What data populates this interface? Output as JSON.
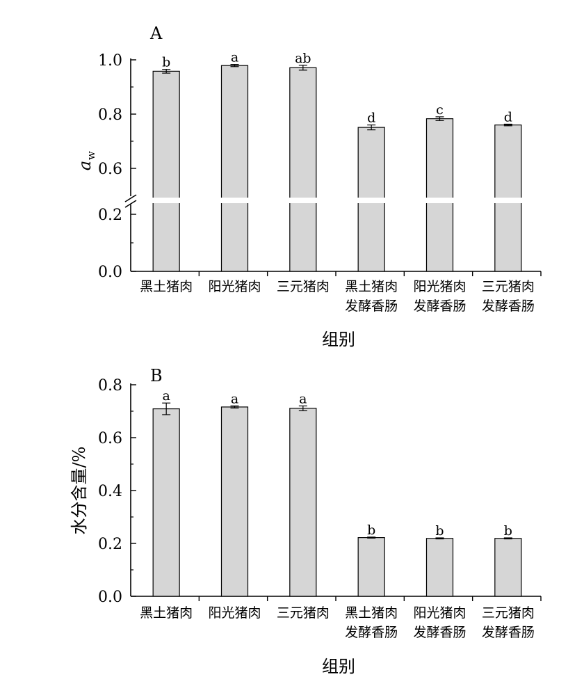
{
  "chart_data": [
    {
      "type": "bar",
      "panel_label": "A",
      "xlabel": "组别",
      "ylabel": "a",
      "ylabel_sub": "w",
      "categories": [
        [
          "黑土猪肉",
          ""
        ],
        [
          "阳光猪肉",
          ""
        ],
        [
          "三元猪肉",
          ""
        ],
        [
          "黑土猪肉",
          "发酵香肠"
        ],
        [
          "阳光猪肉",
          "发酵香肠"
        ],
        [
          "三元猪肉",
          "发酵香肠"
        ]
      ],
      "values": [
        0.958,
        0.979,
        0.971,
        0.751,
        0.783,
        0.76
      ],
      "errors": [
        0.007,
        0.004,
        0.009,
        0.009,
        0.007,
        0.003
      ],
      "significance": [
        "b",
        "a",
        "ab",
        "d",
        "c",
        "d"
      ],
      "ylim": [
        0.0,
        1.0
      ],
      "axis_break": [
        0.25,
        0.55
      ],
      "yticks": [
        "0.0",
        "0.2",
        "0.6",
        "0.8",
        "1.0"
      ],
      "bar_color": "#d6d6d6"
    },
    {
      "type": "bar",
      "panel_label": "B",
      "xlabel": "组别",
      "ylabel": "水分含量/%",
      "categories": [
        [
          "黑土猪肉",
          ""
        ],
        [
          "阳光猪肉",
          ""
        ],
        [
          "三元猪肉",
          ""
        ],
        [
          "黑土猪肉",
          "发酵香肠"
        ],
        [
          "阳光猪肉",
          "发酵香肠"
        ],
        [
          "三元猪肉",
          "发酵香肠"
        ]
      ],
      "values": [
        0.709,
        0.716,
        0.711,
        0.222,
        0.219,
        0.219
      ],
      "errors": [
        0.022,
        0.004,
        0.009,
        0.002,
        0.002,
        0.002
      ],
      "significance": [
        "a",
        "a",
        "a",
        "b",
        "b",
        "b"
      ],
      "ylim": [
        0.0,
        0.8
      ],
      "yticks": [
        "0.0",
        "0.2",
        "0.4",
        "0.6",
        "0.8"
      ],
      "bar_color": "#d6d6d6"
    }
  ]
}
